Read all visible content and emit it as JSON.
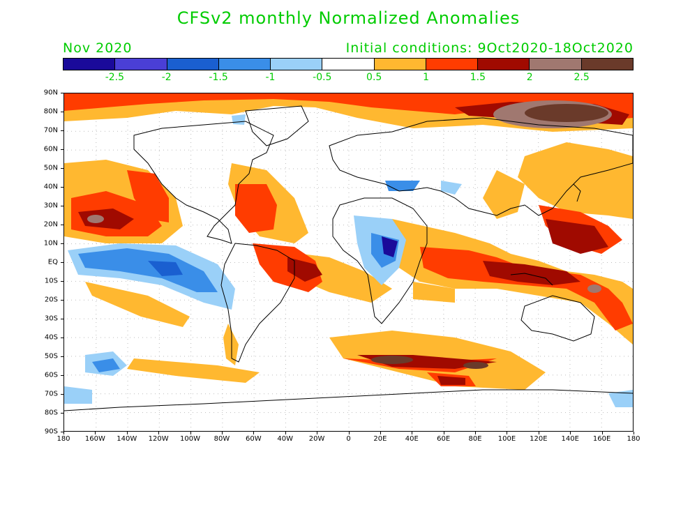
{
  "title": "CFSv2 monthly Normalized Anomalies",
  "month_label": "Nov 2020",
  "init_label": "Initial conditions: 9Oct2020-18Oct2020",
  "colorbar": {
    "colors": [
      "#1a0a9a",
      "#4a3fd6",
      "#1a5fd0",
      "#3a8ee8",
      "#9ad0f8",
      "#ffffff",
      "#ffb830",
      "#ff3c00",
      "#a00a00",
      "#a07870",
      "#6a3a2a"
    ],
    "labels": [
      "-2.5",
      "-2",
      "-1.5",
      "-1",
      "-0.5",
      "0.5",
      "1",
      "1.5",
      "2",
      "2.5"
    ]
  },
  "axes": {
    "lat_labels": [
      "90N",
      "80N",
      "70N",
      "60N",
      "50N",
      "40N",
      "30N",
      "20N",
      "10N",
      "EQ",
      "10S",
      "20S",
      "30S",
      "40S",
      "50S",
      "60S",
      "70S",
      "80S",
      "90S"
    ],
    "lon_labels": [
      "180",
      "160W",
      "140W",
      "120W",
      "100W",
      "80W",
      "60W",
      "40W",
      "20W",
      "0",
      "20E",
      "40E",
      "60E",
      "80E",
      "100E",
      "120E",
      "140E",
      "160E",
      "180"
    ]
  },
  "icons": {
    "continent_outline": "coastline-outline"
  }
}
